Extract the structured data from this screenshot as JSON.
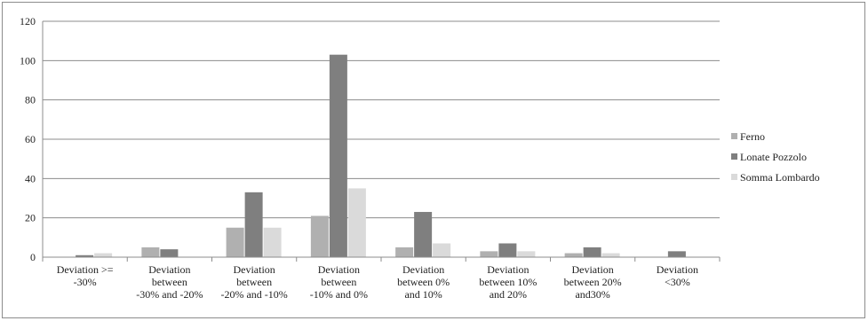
{
  "chart_data": {
    "type": "bar",
    "title": "",
    "xlabel": "",
    "ylabel": "",
    "ylim": [
      0,
      120
    ],
    "yticks": [
      "0",
      "20",
      "40",
      "60",
      "80",
      "100",
      "120"
    ],
    "grid": true,
    "legend_position": "right",
    "categories": [
      [
        "Deviation >=",
        "-30%"
      ],
      [
        "Deviation",
        "between",
        "-30% and -20%"
      ],
      [
        "Deviation",
        "between",
        "-20% and -10%"
      ],
      [
        "Deviation",
        "between",
        "-10% and 0%"
      ],
      [
        "Deviation",
        "between 0%",
        "and 10%"
      ],
      [
        "Deviation",
        "between  10%",
        "and 20%"
      ],
      [
        "Deviation",
        "between 20%",
        "and30%"
      ],
      [
        "Deviation",
        "<30%"
      ]
    ],
    "series": [
      {
        "name": "Ferno",
        "color": "#b0b0b0",
        "values": [
          0,
          5,
          15,
          21,
          5,
          3,
          2,
          0
        ]
      },
      {
        "name": "Lonate Pozzolo",
        "color": "#7f7f7f",
        "values": [
          1,
          4,
          33,
          103,
          23,
          7,
          5,
          3
        ]
      },
      {
        "name": "Somma Lombardo",
        "color": "#dadada",
        "values": [
          2,
          0,
          15,
          35,
          7,
          3,
          2,
          0
        ]
      }
    ]
  }
}
